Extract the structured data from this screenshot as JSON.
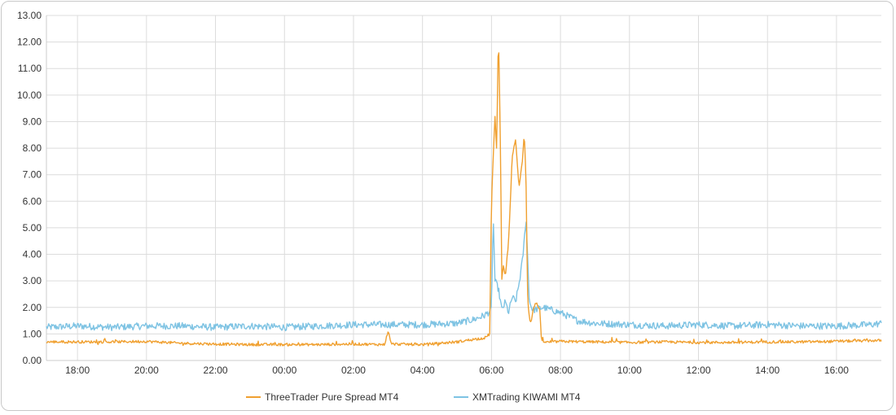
{
  "chart_data": {
    "type": "line",
    "title": "",
    "xlabel": "",
    "ylabel": "",
    "ylim": [
      0,
      13
    ],
    "y_ticks": [
      "0.00",
      "1.00",
      "2.00",
      "3.00",
      "4.00",
      "5.00",
      "6.00",
      "7.00",
      "8.00",
      "9.00",
      "10.00",
      "11.00",
      "12.00",
      "13.00"
    ],
    "x_ticks": [
      "18:00",
      "20:00",
      "22:00",
      "00:00",
      "02:00",
      "04:00",
      "06:00",
      "08:00",
      "10:00",
      "12:00",
      "14:00",
      "16:00"
    ],
    "x_range_hours": [
      17.1,
      41.3
    ],
    "grid": true,
    "legend_position": "bottom",
    "series": [
      {
        "name": "ThreeTrader Pure Spread MT4",
        "color": "#f0a030",
        "x": [
          17.1,
          18,
          19,
          20,
          21,
          22,
          23,
          24,
          25,
          26,
          26.9,
          27,
          27.1,
          28,
          28.5,
          29,
          29.5,
          29.8,
          29.95,
          30,
          30.1,
          30.15,
          30.2,
          30.25,
          30.3,
          30.35,
          30.4,
          30.5,
          30.6,
          30.7,
          30.8,
          30.9,
          30.95,
          31,
          31.05,
          31.1,
          31.15,
          31.2,
          31.3,
          31.4,
          31.45,
          31.5,
          31.55,
          31.6,
          31.7,
          31.8,
          32,
          33,
          34,
          35,
          36,
          37,
          38,
          39,
          40,
          41,
          41.3
        ],
        "y": [
          0.7,
          0.7,
          0.7,
          0.72,
          0.65,
          0.62,
          0.6,
          0.6,
          0.6,
          0.62,
          0.6,
          1.1,
          0.62,
          0.6,
          0.65,
          0.7,
          0.8,
          0.85,
          1.0,
          6.0,
          9.2,
          7.9,
          12.4,
          9.0,
          3.1,
          3.6,
          3.2,
          4.5,
          7.7,
          8.3,
          6.5,
          7.6,
          8.6,
          6.9,
          2.3,
          1.6,
          1.4,
          1.9,
          2.2,
          1.9,
          0.7,
          0.72,
          0.7,
          0.68,
          0.7,
          0.7,
          0.72,
          0.7,
          0.68,
          0.7,
          0.68,
          0.68,
          0.7,
          0.7,
          0.72,
          0.75,
          0.75
        ]
      },
      {
        "name": "XMTrading KIWAMI MT4",
        "color": "#7ec3e3",
        "x": [
          17.1,
          18,
          19,
          20,
          21,
          22,
          23,
          24,
          25,
          26,
          27,
          28,
          29,
          29.5,
          29.8,
          30,
          30.05,
          30.1,
          30.2,
          30.3,
          30.4,
          30.5,
          30.6,
          30.7,
          30.8,
          30.9,
          30.95,
          31,
          31.1,
          31.2,
          31.5,
          32,
          32.5,
          33,
          34,
          35,
          36,
          37,
          38,
          39,
          40,
          41,
          41.3
        ],
        "y": [
          1.25,
          1.3,
          1.25,
          1.3,
          1.3,
          1.25,
          1.3,
          1.25,
          1.3,
          1.35,
          1.35,
          1.35,
          1.4,
          1.55,
          1.7,
          1.9,
          5.5,
          3.0,
          2.7,
          1.9,
          2.2,
          1.8,
          2.4,
          2.2,
          2.9,
          3.8,
          4.5,
          5.4,
          2.2,
          1.9,
          2.0,
          1.8,
          1.5,
          1.4,
          1.35,
          1.3,
          1.35,
          1.3,
          1.35,
          1.3,
          1.3,
          1.35,
          1.4
        ]
      }
    ]
  }
}
